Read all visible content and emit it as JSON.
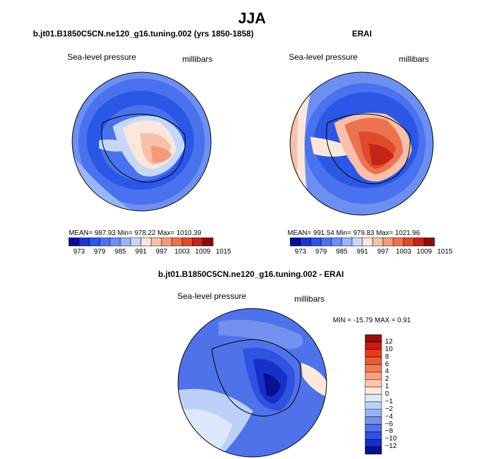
{
  "title": "JJA",
  "panels": [
    {
      "heading": "b.jt01.B1850C5CN.ne120_g16.tuning.002 (yrs 1850-1858)",
      "field_label": "Sea-level pressure",
      "units": "millibars",
      "stats": "MEAN= 987.93   Min= 978.22   Max= 1010.39"
    },
    {
      "heading": "ERAI",
      "field_label": "Sea-level pressure",
      "units": "millibars",
      "stats": "MEAN= 991.54   Min= 979.83   Max= 1021.96"
    }
  ],
  "diff_panel": {
    "heading": "b.jt01.B1850C5CN.ne120_g16.tuning.002 - ERAI",
    "field_label": "Sea-level pressure",
    "units": "millibars",
    "stats": "MIN = -15.79  MAX =    0.91"
  },
  "colorbar_abs": {
    "colors": [
      "#08089a",
      "#1a35d0",
      "#2c56e6",
      "#4a72ee",
      "#6d8ff2",
      "#9bb6f6",
      "#c6d8fa",
      "#fbe6dc",
      "#f8c0a8",
      "#f39a7a",
      "#ec7350",
      "#e04a2c",
      "#c6241a",
      "#8c0c0c"
    ],
    "labels": [
      "973",
      "979",
      "985",
      "991",
      "997",
      "1003",
      "1009",
      "1015"
    ]
  },
  "colorbar_diff": {
    "colors": [
      "#9c0c0c",
      "#c61c12",
      "#e83a1a",
      "#f05a30",
      "#f47b56",
      "#f8a080",
      "#fbc6ae",
      "#fde7da",
      "#dde8fb",
      "#bcd0f8",
      "#97b3f4",
      "#7392ef",
      "#4f72ea",
      "#2f52e2",
      "#1630c8",
      "#081096"
    ],
    "labels": [
      "12",
      "10",
      "8",
      "6",
      "4",
      "2",
      "1",
      "0",
      "−1",
      "−2",
      "−4",
      "−6",
      "−8",
      "−10",
      "−12"
    ]
  },
  "map_colors": {
    "ocean_base": "#4a72ee",
    "mid_blue": "#2c56e6",
    "light_blue": "#9bb6f6",
    "warm": "#e04a2c",
    "diff_base": "#4f72ea",
    "diff_dark": "#081096"
  }
}
